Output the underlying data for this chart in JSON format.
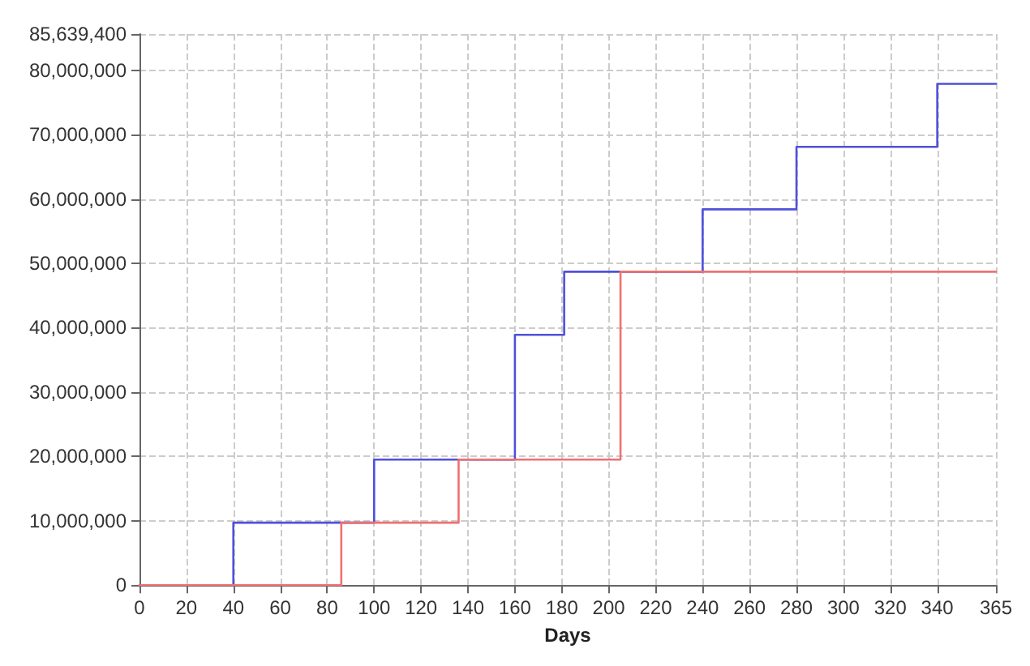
{
  "chart_data": {
    "type": "step",
    "xlabel": "Days",
    "xlim": [
      0,
      365
    ],
    "xticks": [
      0,
      20,
      40,
      60,
      80,
      100,
      120,
      140,
      160,
      180,
      200,
      220,
      240,
      260,
      280,
      300,
      320,
      340,
      365
    ],
    "ylim": [
      0,
      85639400
    ],
    "yticks": [
      0,
      {
        "value": 10000000,
        "label": "10,000,000"
      },
      {
        "value": 20000000,
        "label": "20,000,000"
      },
      {
        "value": 30000000,
        "label": "30,000,000"
      },
      {
        "value": 40000000,
        "label": "40,000,000"
      },
      {
        "value": 50000000,
        "label": "50,000,000"
      },
      {
        "value": 60000000,
        "label": "60,000,000"
      },
      {
        "value": 70000000,
        "label": "70,000,000"
      },
      {
        "value": 80000000,
        "label": "80,000,000"
      },
      {
        "value": 85639400,
        "label": "85,639,400"
      }
    ],
    "grid": true,
    "line_style": "solid",
    "marker": "none",
    "series": [
      {
        "color": "#5050dc",
        "x": [
          0,
          40,
          100,
          160,
          181,
          240,
          280,
          340,
          365
        ],
        "values": [
          0,
          9700000,
          19500000,
          38900000,
          48700000,
          58400000,
          68100000,
          77900000,
          77900000
        ]
      },
      {
        "color": "#f07070",
        "x": [
          0,
          86,
          136,
          205,
          365
        ],
        "values": [
          0,
          9700000,
          19500000,
          48700000,
          48700000
        ]
      }
    ]
  }
}
